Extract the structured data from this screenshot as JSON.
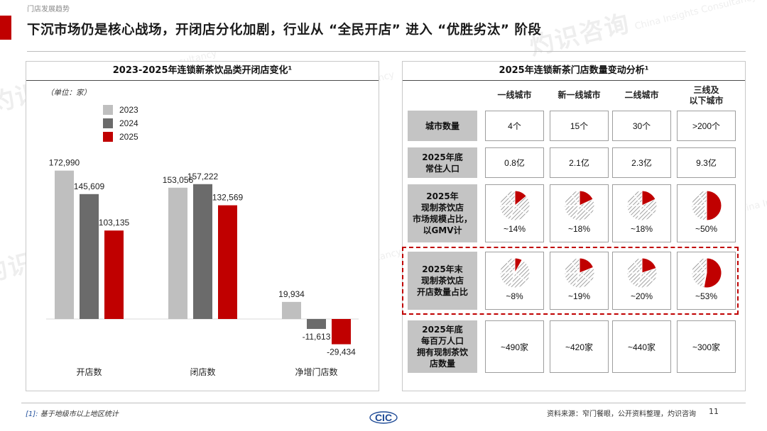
{
  "section_tag": "门店发展趋势",
  "headline": "下沉市场仍是核心战场，开闭店分化加剧，行业从 “全民开店” 进入 “优胜劣汰” 阶段",
  "watermark": {
    "cn": "灼识咨询",
    "en": "China Insights Consultancy",
    "logo": "CIC"
  },
  "left_panel": {
    "title": "2023-2025年连锁新茶饮品类开闭店变化¹",
    "unit": "（单位：家）"
  },
  "chart_data": {
    "type": "bar",
    "title": "2023-2025年连锁新茶饮品类开闭店变化¹",
    "categories": [
      "开店数",
      "闭店数",
      "净增门店数"
    ],
    "series": [
      {
        "name": "2023",
        "color": "#bfbfbf",
        "values": [
          172990,
          153056,
          19934
        ],
        "labels": [
          "172,990",
          "153,056",
          "19,934"
        ]
      },
      {
        "name": "2024",
        "color": "#6b6b6b",
        "values": [
          145609,
          157222,
          -11613
        ],
        "labels": [
          "145,609",
          "157,222",
          "-11,613"
        ]
      },
      {
        "name": "2025",
        "color": "#c00000",
        "values": [
          103135,
          132569,
          -29434
        ],
        "labels": [
          "103,135",
          "132,569",
          "-29,434"
        ]
      }
    ],
    "ylim": [
      -35000,
      180000
    ],
    "grid": false,
    "legend_position": "top-left"
  },
  "right_panel": {
    "title": "2025年连锁新茶门店数量变动分析¹",
    "columns": [
      "一线城市",
      "新一线城市",
      "二线城市",
      "三线及\n以下城市"
    ],
    "rows": [
      {
        "label": "城市数量",
        "kind": "text",
        "values": [
          "4个",
          "15个",
          "30个",
          ">200个"
        ]
      },
      {
        "label": "2025年底\n常住人口",
        "kind": "text",
        "values": [
          "0.8亿",
          "2.1亿",
          "2.3亿",
          "9.3亿"
        ]
      },
      {
        "label": "2025年\n现制茶饮店\n市场规模占比，\n以GMV计",
        "kind": "pie",
        "values": [
          "~14%",
          "~18%",
          "~18%",
          "~50%"
        ],
        "shares": [
          0.14,
          0.18,
          0.18,
          0.5
        ]
      },
      {
        "label": "2025年末\n现制茶饮店\n开店数量占比",
        "kind": "pie",
        "values": [
          "~8%",
          "~19%",
          "~20%",
          "~53%"
        ],
        "shares": [
          0.08,
          0.19,
          0.2,
          0.53
        ]
      },
      {
        "label": "2025年底\n每百万人口\n拥有现制茶饮\n店数量",
        "kind": "text",
        "values": [
          "~490家",
          "~420家",
          "~440家",
          "~300家"
        ]
      }
    ]
  },
  "footer": {
    "footnote_mark": "[1]:",
    "footnote": "基于地级市以上地区统计",
    "logo": "CIC",
    "source": "资料来源：窄门餐眼，公开资料整理，灼识咨询",
    "page": "11"
  },
  "colors": {
    "accent": "#c00000",
    "dark_gray": "#6b6b6b",
    "light_gray": "#bfbfbf",
    "label_gray": "#c4c4c4"
  }
}
